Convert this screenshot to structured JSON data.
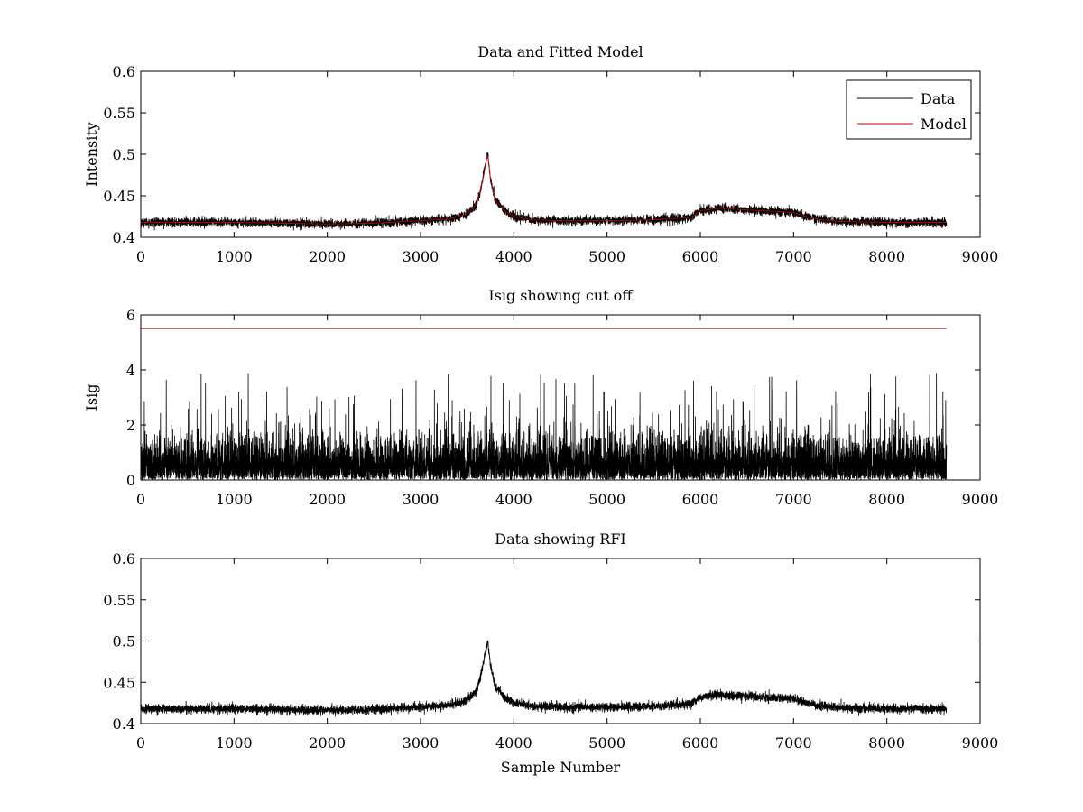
{
  "chart_data": [
    {
      "type": "line",
      "title": "Data and Fitted Model",
      "xlabel": "",
      "ylabel": "Intensity",
      "xlim": [
        0,
        9000
      ],
      "ylim": [
        0.4,
        0.6
      ],
      "xticks": [
        0,
        1000,
        2000,
        3000,
        4000,
        5000,
        6000,
        7000,
        8000,
        9000
      ],
      "yticks": [
        0.4,
        0.45,
        0.5,
        0.55,
        0.6
      ],
      "ytick_labels": [
        "0.4",
        "0.45",
        "0.5",
        "0.55",
        "0.6"
      ],
      "legend": {
        "position": "top-right",
        "entries": [
          "Data",
          "Model"
        ]
      },
      "series": [
        {
          "name": "Data",
          "color": "#000000",
          "kind": "noisy",
          "n_points": 8640,
          "noise_amplitude": 0.006,
          "x": [
            0,
            500,
            1000,
            1500,
            2000,
            2500,
            3000,
            3300,
            3500,
            3600,
            3650,
            3700,
            3720,
            3750,
            3800,
            3900,
            4000,
            4200,
            4500,
            5000,
            5500,
            5900,
            6000,
            6200,
            6500,
            7000,
            7100,
            7300,
            7500,
            8000,
            8640
          ],
          "y": [
            0.418,
            0.418,
            0.418,
            0.417,
            0.416,
            0.417,
            0.42,
            0.422,
            0.428,
            0.44,
            0.46,
            0.49,
            0.5,
            0.47,
            0.445,
            0.432,
            0.425,
            0.421,
            0.42,
            0.42,
            0.421,
            0.424,
            0.432,
            0.435,
            0.433,
            0.43,
            0.426,
            0.421,
            0.419,
            0.418,
            0.418
          ]
        },
        {
          "name": "Model",
          "color": "#cc0000",
          "kind": "smooth",
          "x": [
            0,
            500,
            1000,
            1500,
            2000,
            2500,
            3000,
            3300,
            3500,
            3600,
            3650,
            3700,
            3720,
            3750,
            3800,
            3900,
            4000,
            4200,
            4500,
            5000,
            5500,
            5900,
            6000,
            6200,
            6500,
            7000,
            7100,
            7300,
            7500,
            8000,
            8640
          ],
          "y": [
            0.418,
            0.418,
            0.418,
            0.417,
            0.416,
            0.417,
            0.42,
            0.422,
            0.428,
            0.44,
            0.46,
            0.49,
            0.5,
            0.47,
            0.445,
            0.432,
            0.425,
            0.421,
            0.42,
            0.42,
            0.421,
            0.424,
            0.432,
            0.435,
            0.433,
            0.43,
            0.426,
            0.421,
            0.419,
            0.418,
            0.418
          ]
        }
      ]
    },
    {
      "type": "line",
      "title": "Isig showing cut off",
      "xlabel": "",
      "ylabel": "Isig",
      "xlim": [
        0,
        9000
      ],
      "ylim": [
        0,
        6
      ],
      "xticks": [
        0,
        1000,
        2000,
        3000,
        4000,
        5000,
        6000,
        7000,
        8000,
        9000
      ],
      "yticks": [
        0,
        2,
        4,
        6
      ],
      "ytick_labels": [
        "0",
        "2",
        "4",
        "6"
      ],
      "series": [
        {
          "color": "#000000",
          "kind": "spiky",
          "n_points": 8640,
          "x_range": [
            0,
            8640
          ],
          "typical_range": [
            0,
            2.0
          ],
          "max_value": 3.9
        },
        {
          "color": "#cc0000",
          "kind": "constant",
          "x": [
            0,
            8640
          ],
          "y": [
            5.5,
            5.5
          ]
        }
      ]
    },
    {
      "type": "line",
      "title": "Data showing RFI",
      "xlabel": "Sample Number",
      "ylabel": "",
      "xlim": [
        0,
        9000
      ],
      "ylim": [
        0.4,
        0.6
      ],
      "xticks": [
        0,
        1000,
        2000,
        3000,
        4000,
        5000,
        6000,
        7000,
        8000,
        9000
      ],
      "yticks": [
        0.4,
        0.45,
        0.5,
        0.55,
        0.6
      ],
      "ytick_labels": [
        "0.4",
        "0.45",
        "0.5",
        "0.55",
        "0.6"
      ],
      "series": [
        {
          "color": "#000000",
          "kind": "noisy",
          "n_points": 8640,
          "noise_amplitude": 0.006,
          "x": [
            0,
            500,
            1000,
            1500,
            2000,
            2500,
            3000,
            3300,
            3500,
            3600,
            3650,
            3700,
            3720,
            3750,
            3800,
            3900,
            4000,
            4200,
            4500,
            5000,
            5500,
            5900,
            6000,
            6200,
            6500,
            7000,
            7100,
            7300,
            7500,
            8000,
            8640
          ],
          "y": [
            0.418,
            0.418,
            0.418,
            0.417,
            0.416,
            0.417,
            0.42,
            0.422,
            0.428,
            0.44,
            0.46,
            0.49,
            0.5,
            0.47,
            0.445,
            0.432,
            0.425,
            0.421,
            0.42,
            0.42,
            0.421,
            0.424,
            0.432,
            0.435,
            0.433,
            0.43,
            0.426,
            0.421,
            0.419,
            0.418,
            0.418
          ]
        }
      ]
    }
  ]
}
